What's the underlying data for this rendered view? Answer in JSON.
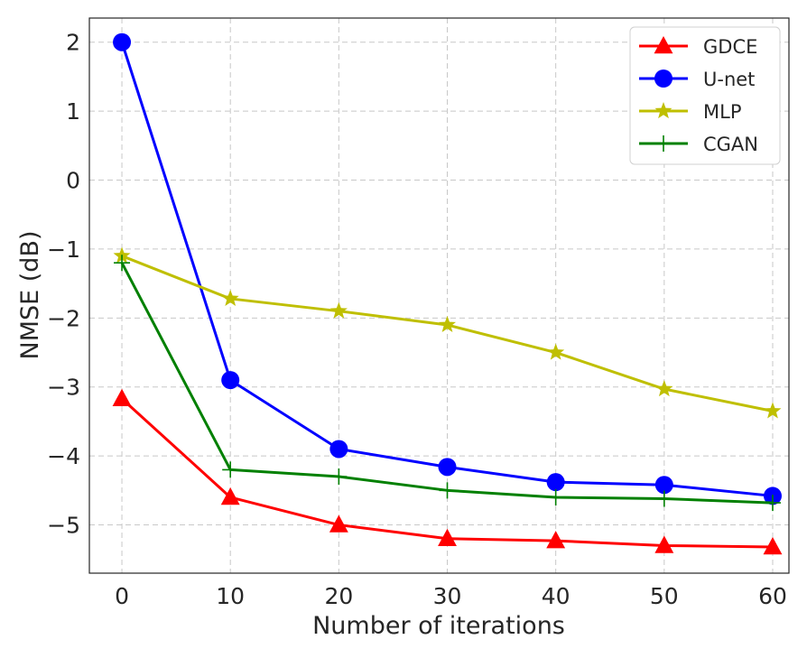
{
  "chart_data": {
    "type": "line",
    "title": "",
    "xlabel": "Number of iterations",
    "ylabel": "NMSE (dB)",
    "x": [
      0,
      10,
      20,
      30,
      40,
      50,
      60
    ],
    "xlim": [
      -3,
      61.5
    ],
    "ylim": [
      -5.7,
      2.35
    ],
    "xticks": [
      0,
      10,
      20,
      30,
      40,
      50,
      60
    ],
    "yticks": [
      2,
      1,
      0,
      -1,
      -2,
      -3,
      -4,
      -5
    ],
    "ytick_labels": [
      "2",
      "1",
      "0",
      "−1",
      "−2",
      "−3",
      "−4",
      "−5"
    ],
    "grid": true,
    "legend_position": "top-right",
    "series": [
      {
        "name": "GDCE",
        "color": "#ff0000",
        "marker": "triangle",
        "values": [
          -3.17,
          -4.6,
          -5.0,
          -5.2,
          -5.23,
          -5.3,
          -5.32
        ]
      },
      {
        "name": "U-net",
        "color": "#0000ff",
        "marker": "circle",
        "values": [
          2.0,
          -2.9,
          -3.9,
          -4.16,
          -4.38,
          -4.42,
          -4.58
        ]
      },
      {
        "name": "MLP",
        "color": "#bfbf00",
        "marker": "star",
        "values": [
          -1.1,
          -1.72,
          -1.9,
          -2.1,
          -2.5,
          -3.03,
          -3.35
        ]
      },
      {
        "name": "CGAN",
        "color": "#008000",
        "marker": "plus",
        "values": [
          -1.2,
          -4.2,
          -4.3,
          -4.5,
          -4.6,
          -4.62,
          -4.68
        ]
      }
    ]
  }
}
